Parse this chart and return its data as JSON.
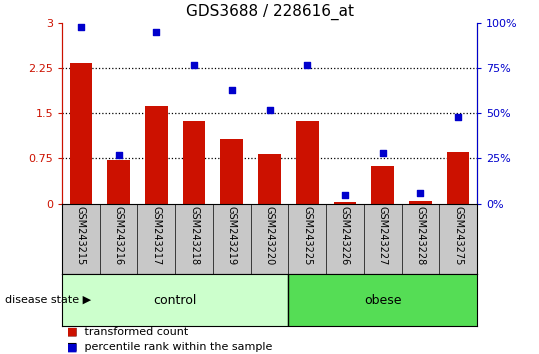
{
  "title": "GDS3688 / 228616_at",
  "samples": [
    "GSM243215",
    "GSM243216",
    "GSM243217",
    "GSM243218",
    "GSM243219",
    "GSM243220",
    "GSM243225",
    "GSM243226",
    "GSM243227",
    "GSM243228",
    "GSM243275"
  ],
  "transformed_count": [
    2.33,
    0.73,
    1.62,
    1.38,
    1.07,
    0.83,
    1.38,
    0.02,
    0.63,
    0.05,
    0.85
  ],
  "percentile_rank": [
    98,
    27,
    95,
    77,
    63,
    52,
    77,
    5,
    28,
    6,
    48
  ],
  "bar_color": "#cc1100",
  "dot_color": "#0000cc",
  "left_ylim": [
    0,
    3
  ],
  "right_ylim": [
    0,
    100
  ],
  "left_yticks": [
    0,
    0.75,
    1.5,
    2.25,
    3
  ],
  "right_yticks": [
    0,
    25,
    50,
    75,
    100
  ],
  "left_ytick_labels": [
    "0",
    "0.75",
    "1.5",
    "2.25",
    "3"
  ],
  "right_ytick_labels": [
    "0%",
    "25%",
    "50%",
    "75%",
    "100%"
  ],
  "hline_values": [
    0.75,
    1.5,
    2.25
  ],
  "groups": [
    {
      "label": "control",
      "start": 0,
      "end": 5,
      "color": "#ccffcc"
    },
    {
      "label": "obese",
      "start": 6,
      "end": 10,
      "color": "#55dd55"
    }
  ],
  "disease_state_label": "disease state",
  "legend_bar_label": "transformed count",
  "legend_dot_label": "percentile rank within the sample",
  "sample_bg_color": "#c8c8c8",
  "plot_bg_color": "#ffffff",
  "title_fontsize": 11,
  "tick_fontsize": 8,
  "label_fontsize": 9,
  "sample_label_fontsize": 7
}
